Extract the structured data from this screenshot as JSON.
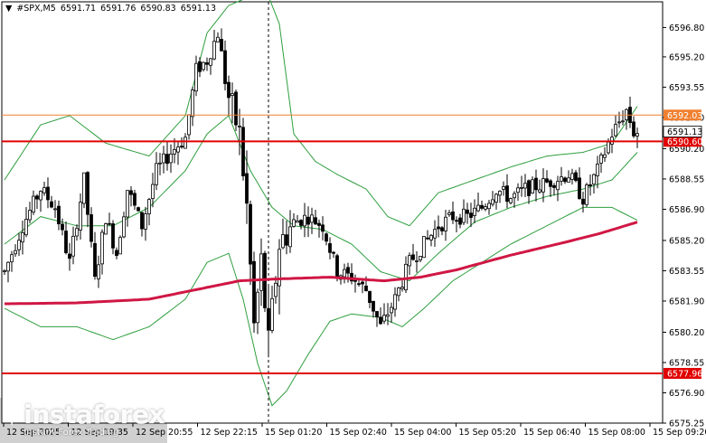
{
  "header": {
    "icon": "expand-triangle-icon",
    "symbol": "#SPX,M5",
    "open": "6591.71",
    "high": "6591.76",
    "low": "6590.83",
    "close": "6591.13"
  },
  "colors": {
    "background": "#ffffff",
    "candle": "#000000",
    "bollinger": "#2e9e3e",
    "moving_average": "#d01744",
    "horizontal_line": "#e00000",
    "bid_line": "#f08030",
    "price_label_red": "#e00000",
    "price_label_orange": "#f08030",
    "cursor_line": "#000000"
  },
  "logo": {
    "brand": "instaforex",
    "tagline": "Instant Forex Trading"
  },
  "chart_data": {
    "type": "candlestick",
    "y_axis": {
      "range": [
        6575.25,
        6598.2
      ],
      "tick_labels": [
        "6596.80",
        "6595.20",
        "6593.55",
        "6591.90",
        "6590.20",
        "6588.55",
        "6586.90",
        "6585.20",
        "6583.55",
        "6581.90",
        "6580.20",
        "6578.55",
        "6576.90",
        "6575.25"
      ]
    },
    "x_axis": {
      "tick_labels": [
        "12 Sep 2025",
        "12 Sep 19:35",
        "12 Sep 20:55",
        "12 Sep 22:15",
        "15 Sep 01:20",
        "15 Sep 02:40",
        "15 Sep 04:00",
        "15 Sep 05:20",
        "15 Sep 06:40",
        "15 Sep 08:00",
        "15 Sep 09:20"
      ]
    },
    "horizontal_levels": [
      {
        "price": 6590.6,
        "label": "6590.60",
        "style": "red"
      },
      {
        "price": 6577.96,
        "label": "6577.96",
        "style": "red"
      }
    ],
    "bid_level": {
      "price": 6592.03,
      "label": "6592.03"
    },
    "current_price": {
      "price": 6591.13,
      "label": "6591.13"
    },
    "cursor_period_index": 73,
    "anchors": [
      [
        0,
        6583.5
      ],
      [
        5,
        6586.0
      ],
      [
        10,
        6588.0
      ],
      [
        14,
        6587.0
      ],
      [
        18,
        6584.0
      ],
      [
        22,
        6588.5
      ],
      [
        25,
        6583.0
      ],
      [
        28,
        6586.5
      ],
      [
        31,
        6584.5
      ],
      [
        34,
        6588.0
      ],
      [
        38,
        6586.0
      ],
      [
        42,
        6589.0
      ],
      [
        46,
        6590.0
      ],
      [
        50,
        6590.8
      ],
      [
        53,
        6594.5
      ],
      [
        56,
        6595.0
      ],
      [
        59,
        6596.5
      ],
      [
        62,
        6593.0
      ],
      [
        65,
        6591.0
      ],
      [
        67,
        6587.0
      ],
      [
        69,
        6580.5
      ],
      [
        71,
        6584.0
      ],
      [
        73,
        6579.5
      ],
      [
        76,
        6585.0
      ],
      [
        80,
        6586.2
      ],
      [
        84,
        6586.5
      ],
      [
        88,
        6586.0
      ],
      [
        92,
        6583.5
      ],
      [
        96,
        6583.2
      ],
      [
        100,
        6582.5
      ],
      [
        104,
        6580.5
      ],
      [
        108,
        6582.0
      ],
      [
        112,
        6584.0
      ],
      [
        116,
        6585.0
      ],
      [
        120,
        6586.0
      ],
      [
        124,
        6586.5
      ],
      [
        128,
        6586.5
      ],
      [
        132,
        6587.0
      ],
      [
        136,
        6588.0
      ],
      [
        140,
        6587.5
      ],
      [
        144,
        6588.0
      ],
      [
        148,
        6588.2
      ],
      [
        152,
        6588.5
      ],
      [
        156,
        6588.8
      ],
      [
        160,
        6587.5
      ],
      [
        164,
        6589.0
      ],
      [
        168,
        6591.0
      ],
      [
        172,
        6592.3
      ],
      [
        174,
        6591.1
      ]
    ],
    "moving_average": [
      [
        0,
        6581.75
      ],
      [
        20,
        6581.8
      ],
      [
        40,
        6582.0
      ],
      [
        55,
        6582.6
      ],
      [
        65,
        6583.0
      ],
      [
        75,
        6583.1
      ],
      [
        90,
        6583.2
      ],
      [
        105,
        6583.0
      ],
      [
        115,
        6583.2
      ],
      [
        125,
        6583.6
      ],
      [
        140,
        6584.4
      ],
      [
        155,
        6585.1
      ],
      [
        165,
        6585.6
      ],
      [
        175,
        6586.2
      ]
    ],
    "bollinger_upper": [
      [
        0,
        6588.5
      ],
      [
        10,
        6591.5
      ],
      [
        18,
        6592.0
      ],
      [
        28,
        6590.5
      ],
      [
        40,
        6589.8
      ],
      [
        50,
        6592.0
      ],
      [
        56,
        6596.5
      ],
      [
        62,
        6598.0
      ],
      [
        68,
        6598.5
      ],
      [
        72,
        6599.0
      ],
      [
        76,
        6597.0
      ],
      [
        80,
        6591.0
      ],
      [
        86,
        6589.5
      ],
      [
        92,
        6588.8
      ],
      [
        100,
        6588.0
      ],
      [
        106,
        6586.5
      ],
      [
        112,
        6586.0
      ],
      [
        120,
        6587.8
      ],
      [
        130,
        6588.5
      ],
      [
        140,
        6589.2
      ],
      [
        150,
        6589.8
      ],
      [
        160,
        6590.0
      ],
      [
        168,
        6590.5
      ],
      [
        175,
        6592.5
      ]
    ],
    "bollinger_middle": [
      [
        0,
        6585.0
      ],
      [
        10,
        6586.5
      ],
      [
        20,
        6586.0
      ],
      [
        30,
        6586.0
      ],
      [
        40,
        6587.0
      ],
      [
        50,
        6589.0
      ],
      [
        56,
        6591.0
      ],
      [
        62,
        6592.0
      ],
      [
        68,
        6589.0
      ],
      [
        74,
        6587.0
      ],
      [
        80,
        6586.0
      ],
      [
        88,
        6585.8
      ],
      [
        96,
        6585.0
      ],
      [
        104,
        6583.5
      ],
      [
        112,
        6583.0
      ],
      [
        120,
        6584.5
      ],
      [
        130,
        6586.2
      ],
      [
        140,
        6587.0
      ],
      [
        150,
        6587.6
      ],
      [
        160,
        6588.0
      ],
      [
        168,
        6588.5
      ],
      [
        175,
        6590.0
      ]
    ],
    "bollinger_lower": [
      [
        0,
        6581.5
      ],
      [
        10,
        6580.5
      ],
      [
        20,
        6580.5
      ],
      [
        30,
        6579.8
      ],
      [
        40,
        6580.5
      ],
      [
        50,
        6582.0
      ],
      [
        56,
        6584.0
      ],
      [
        62,
        6584.5
      ],
      [
        66,
        6582.0
      ],
      [
        70,
        6578.5
      ],
      [
        74,
        6576.2
      ],
      [
        78,
        6577.0
      ],
      [
        84,
        6579.0
      ],
      [
        90,
        6580.8
      ],
      [
        96,
        6581.2
      ],
      [
        104,
        6581.0
      ],
      [
        110,
        6580.5
      ],
      [
        116,
        6581.5
      ],
      [
        124,
        6583.0
      ],
      [
        132,
        6584.0
      ],
      [
        140,
        6585.0
      ],
      [
        150,
        6586.0
      ],
      [
        160,
        6587.0
      ],
      [
        168,
        6587.0
      ],
      [
        175,
        6586.3
      ]
    ]
  }
}
